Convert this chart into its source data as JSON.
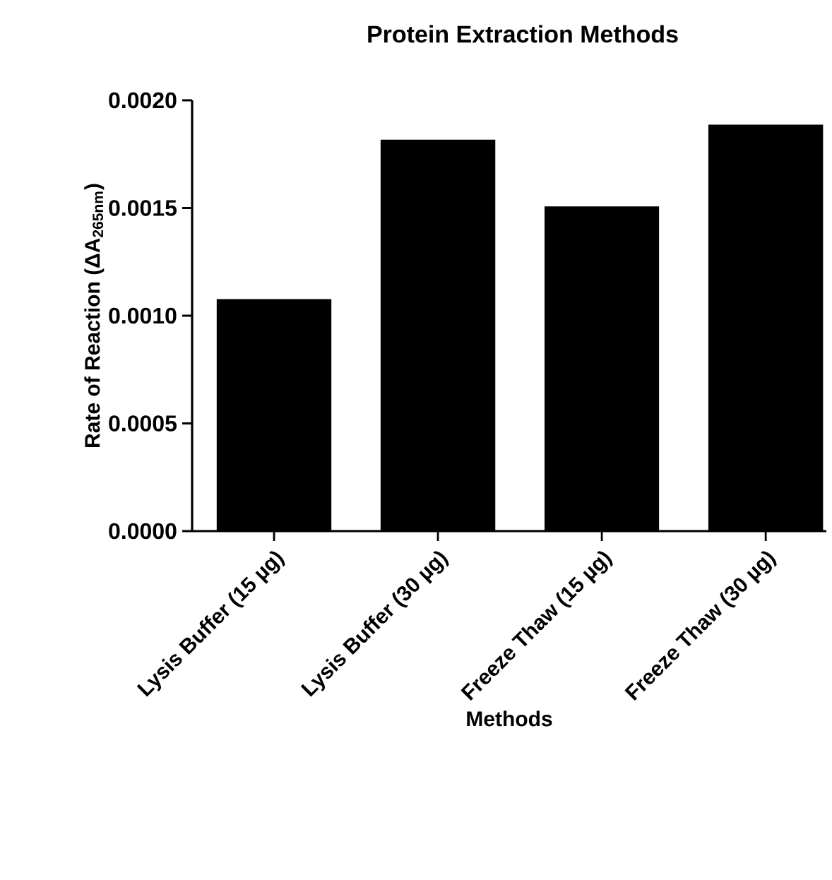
{
  "chart_data": {
    "type": "bar",
    "title": "Protein Extraction Methods",
    "xlabel": "Methods",
    "ylabel": "Rate of Reaction (ΔA$_{265nm}$)",
    "categories": [
      "Lysis Buffer (15 µg)",
      "Lysis Buffer (30 µg)",
      "Freeze Thaw (15 µg)",
      "Freeze Thaw (30 µg)"
    ],
    "values": [
      0.00107,
      0.00181,
      0.0015,
      0.00188
    ],
    "color": "#000000",
    "ylim": [
      0,
      0.002
    ],
    "yticks": [
      {
        "value": 0,
        "label": "0.0000"
      },
      {
        "value": 0.0005,
        "label": "0.0005"
      },
      {
        "value": 0.001,
        "label": "0.0010"
      },
      {
        "value": 0.0015,
        "label": "0.0015"
      },
      {
        "value": 0.002,
        "label": "0.0020"
      }
    ],
    "grid": false
  }
}
